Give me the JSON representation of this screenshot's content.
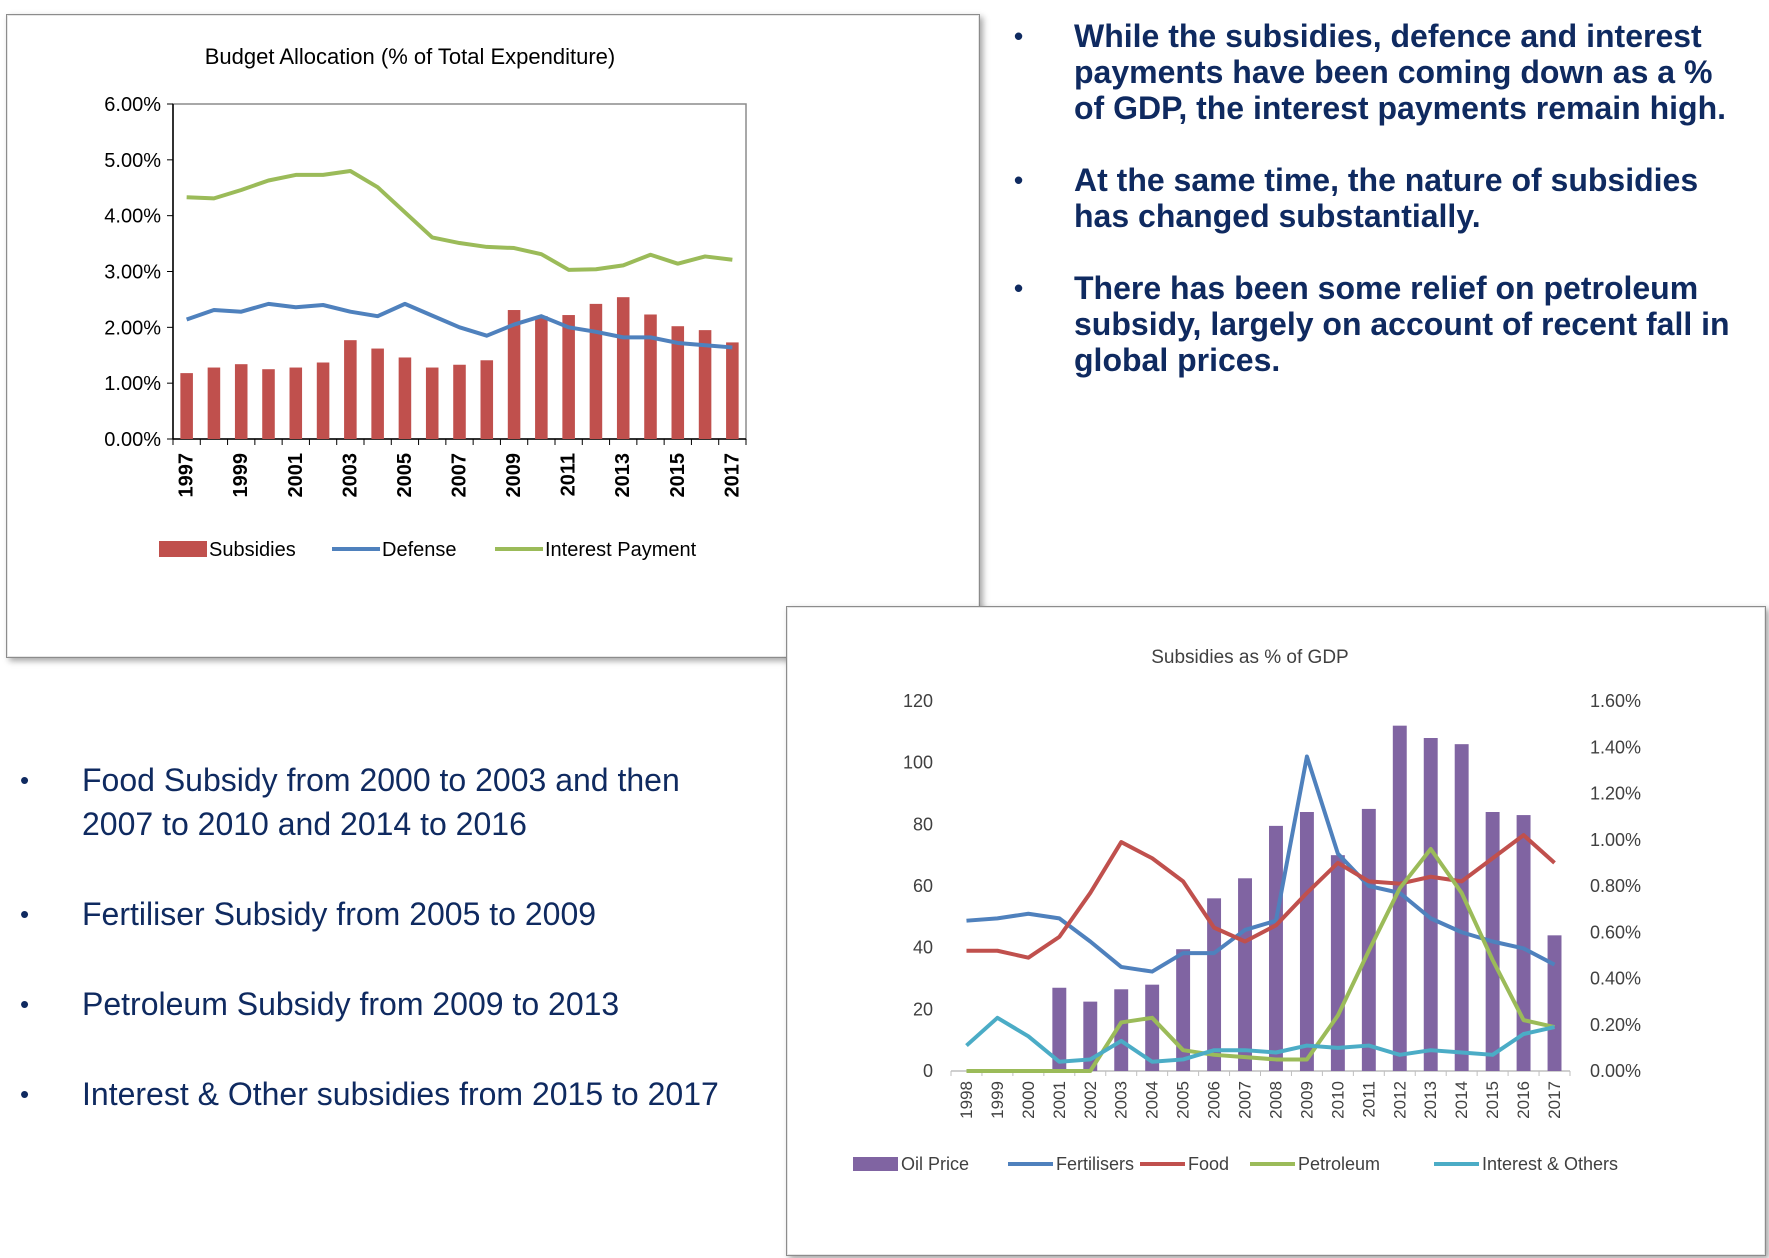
{
  "bullets_top": [
    "While the subsidies, defence and interest payments have been coming down as a % of GDP, the interest payments remain high.",
    "At the same time, the nature of subsidies has changed substantially.",
    "There has been some relief on petroleum subsidy, largely on account of recent fall in global prices."
  ],
  "bullets_bottom": [
    "Food Subsidy from 2000 to 2003 and then 2007 to 2010 and 2014 to 2016",
    "Fertiliser Subsidy from 2005 to 2009",
    "Petroleum Subsidy from 2009 to 2013",
    "Interest & Other subsidies from 2015 to 2017"
  ],
  "chart_data": [
    {
      "type": "bar+line",
      "title": "Budget Allocation (% of Total Expenditure)",
      "categories": [
        "1997",
        "1998",
        "1999",
        "2000",
        "2001",
        "2002",
        "2003",
        "2004",
        "2005",
        "2006",
        "2007",
        "2008",
        "2009",
        "2010",
        "2011",
        "2012",
        "2013",
        "2014",
        "2015",
        "2016",
        "2017"
      ],
      "x_tick_labels": [
        "1997",
        "1999",
        "2001",
        "2003",
        "2005",
        "2007",
        "2009",
        "2011",
        "2013",
        "2015",
        "2017"
      ],
      "ylim": [
        0,
        6
      ],
      "y_ticks": [
        "0.00%",
        "1.00%",
        "2.00%",
        "3.00%",
        "4.00%",
        "5.00%",
        "6.00%"
      ],
      "series": [
        {
          "name": "Subsidies",
          "kind": "bar",
          "color": "#c0504d",
          "values": [
            1.18,
            1.28,
            1.34,
            1.25,
            1.28,
            1.37,
            1.77,
            1.62,
            1.46,
            1.28,
            1.33,
            1.41,
            2.31,
            2.2,
            2.22,
            2.42,
            2.54,
            2.23,
            2.02,
            1.95,
            1.73
          ]
        },
        {
          "name": "Defense",
          "kind": "line",
          "color": "#4f81bd",
          "values": [
            2.14,
            2.31,
            2.28,
            2.42,
            2.36,
            2.4,
            2.28,
            2.2,
            2.42,
            2.21,
            2.0,
            1.85,
            2.05,
            2.2,
            2.0,
            1.92,
            1.82,
            1.82,
            1.72,
            1.68,
            1.64
          ]
        },
        {
          "name": "Interest Payment",
          "kind": "line",
          "color": "#9bbb59",
          "values": [
            4.33,
            4.31,
            4.46,
            4.63,
            4.73,
            4.73,
            4.8,
            4.51,
            4.06,
            3.61,
            3.51,
            3.44,
            3.42,
            3.31,
            3.03,
            3.04,
            3.11,
            3.3,
            3.14,
            3.27,
            3.21
          ]
        }
      ],
      "legend_position": "bottom"
    },
    {
      "type": "bar+line",
      "title": "Subsidies as % of GDP",
      "categories": [
        "1998",
        "1999",
        "2000",
        "2001",
        "2002",
        "2003",
        "2004",
        "2005",
        "2006",
        "2007",
        "2008",
        "2009",
        "2010",
        "2011",
        "2012",
        "2013",
        "2014",
        "2015",
        "2016",
        "2017"
      ],
      "ylim_left": [
        0,
        120
      ],
      "y_ticks_left": [
        "0",
        "20",
        "40",
        "60",
        "80",
        "100",
        "120"
      ],
      "ylim_right": [
        0,
        1.6
      ],
      "y_ticks_right": [
        "0.00%",
        "0.20%",
        "0.40%",
        "0.60%",
        "0.80%",
        "1.00%",
        "1.20%",
        "1.40%",
        "1.60%"
      ],
      "series": [
        {
          "name": "Oil Price",
          "kind": "bar",
          "axis": "left",
          "color": "#8064a2",
          "values": [
            null,
            null,
            null,
            27,
            22.5,
            26.5,
            28,
            39.5,
            56,
            62.5,
            79.5,
            84,
            70,
            85,
            112,
            108,
            106,
            84,
            83,
            44
          ]
        },
        {
          "name": "Fertilisers",
          "kind": "line",
          "axis": "right",
          "color": "#4f81bd",
          "values": [
            0.65,
            0.66,
            0.68,
            0.66,
            0.56,
            0.45,
            0.43,
            0.51,
            0.51,
            0.61,
            0.65,
            1.36,
            0.94,
            0.8,
            0.77,
            0.66,
            0.6,
            0.56,
            0.53,
            0.46
          ]
        },
        {
          "name": "Food",
          "kind": "line",
          "axis": "right",
          "color": "#c0504d",
          "values": [
            0.52,
            0.52,
            0.49,
            0.58,
            0.77,
            0.99,
            0.92,
            0.82,
            0.62,
            0.56,
            0.63,
            0.77,
            0.9,
            0.82,
            0.81,
            0.84,
            0.82,
            0.92,
            1.02,
            0.9
          ]
        },
        {
          "name": "Petroleum",
          "kind": "line",
          "axis": "right",
          "color": "#9bbb59",
          "values": [
            0,
            0,
            0,
            0,
            0,
            0.21,
            0.23,
            0.09,
            0.07,
            0.06,
            0.05,
            0.05,
            0.24,
            0.52,
            0.79,
            0.96,
            0.77,
            0.48,
            0.22,
            0.19
          ]
        },
        {
          "name": "Interest & Others",
          "kind": "line",
          "axis": "right",
          "color": "#4bacc6",
          "values": [
            0.11,
            0.23,
            0.15,
            0.04,
            0.05,
            0.13,
            0.04,
            0.05,
            0.09,
            0.09,
            0.08,
            0.11,
            0.1,
            0.11,
            0.07,
            0.09,
            0.08,
            0.07,
            0.16,
            0.19
          ]
        }
      ],
      "legend_position": "bottom"
    }
  ]
}
